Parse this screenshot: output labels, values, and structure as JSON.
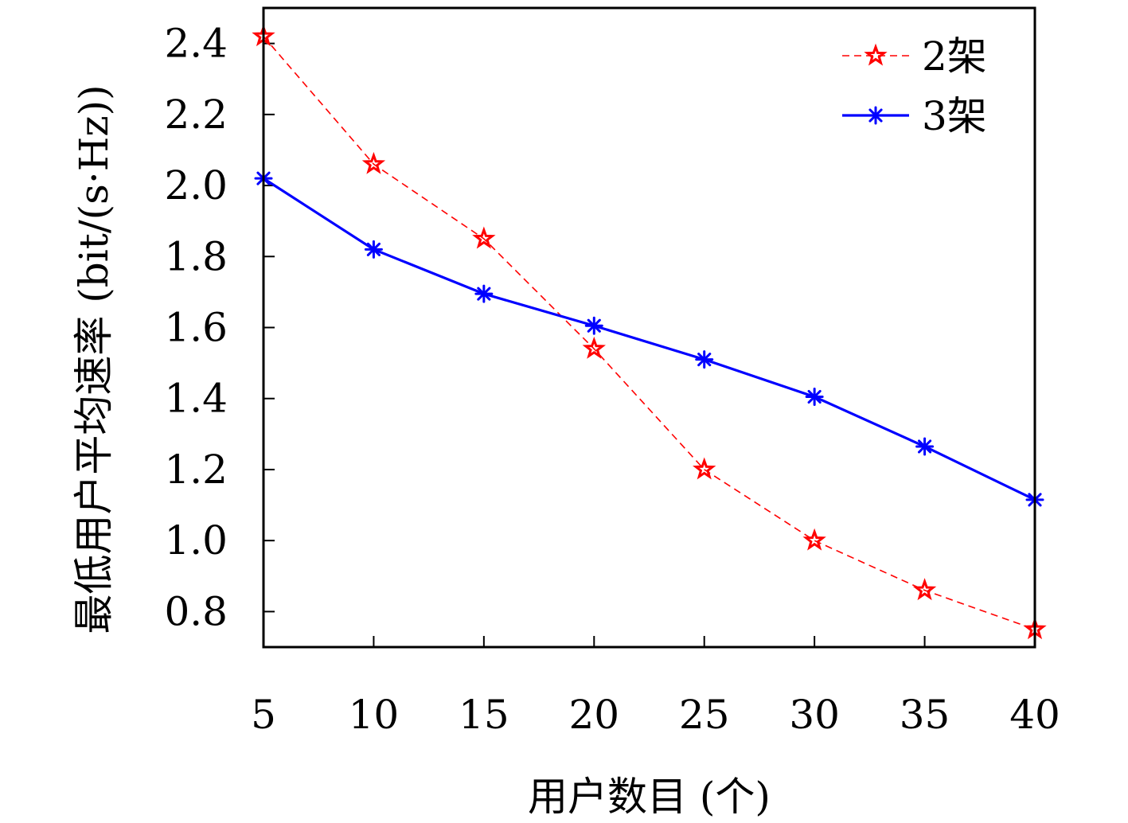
{
  "chart_data": {
    "type": "line",
    "title": "",
    "xlabel": "用户数目 (个)",
    "ylabel": "最低用户平均速率 (bit/(s·Hz))",
    "x": [
      5,
      10,
      15,
      20,
      25,
      30,
      35,
      40
    ],
    "x_ticks": [
      "5",
      "10",
      "15",
      "20",
      "25",
      "30",
      "35",
      "40"
    ],
    "y_ticks": [
      "0.8",
      "1.0",
      "1.2",
      "1.4",
      "1.6",
      "1.8",
      "2.0",
      "2.2",
      "2.4"
    ],
    "xlim": [
      5,
      40
    ],
    "ylim": [
      0.7,
      2.5
    ],
    "grid": false,
    "legend_position": "top-right",
    "series": [
      {
        "name": "2架",
        "values": [
          2.42,
          2.06,
          1.85,
          1.54,
          1.2,
          1.0,
          0.86,
          0.75
        ],
        "color": "#ff0000",
        "line_style": "dashed",
        "marker": "star"
      },
      {
        "name": "3架",
        "values": [
          2.02,
          1.82,
          1.695,
          1.605,
          1.51,
          1.405,
          1.265,
          1.115
        ],
        "color": "#0000ff",
        "line_style": "solid",
        "marker": "asterisk"
      }
    ]
  }
}
